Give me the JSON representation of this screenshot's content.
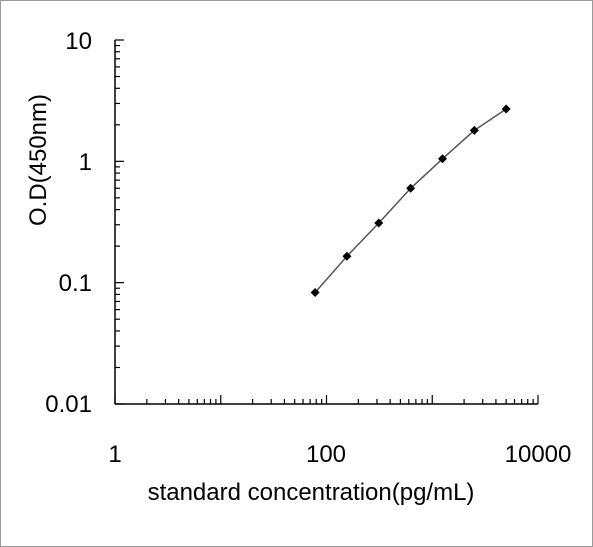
{
  "chart_data": {
    "type": "line",
    "title": "",
    "xlabel": "standard concentration(pg/mL)",
    "ylabel": "O.D(450nm)",
    "x_scale": "log",
    "y_scale": "log",
    "xlim": [
      1,
      10000
    ],
    "ylim": [
      0.01,
      10
    ],
    "x_ticks": [
      "1",
      "100",
      "10000"
    ],
    "y_ticks": [
      "10",
      "1",
      "0.1",
      "0.01"
    ],
    "grid": false,
    "legend": "none",
    "series": [
      {
        "x": [
          78,
          156,
          312,
          625,
          1250,
          2500,
          5000
        ],
        "y": [
          0.083,
          0.165,
          0.31,
          0.6,
          1.05,
          1.8,
          2.7
        ]
      }
    ],
    "colors": {
      "line": "#555555",
      "marker": "#000000",
      "axis": "#000000"
    }
  }
}
